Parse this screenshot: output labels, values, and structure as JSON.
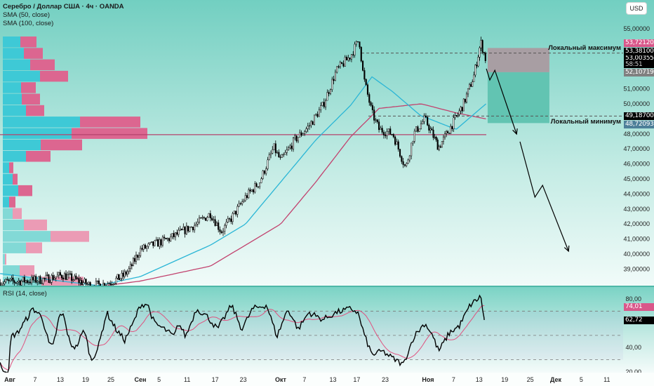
{
  "header": {
    "title": "Серебро / Доллар США · 4ч · OANDA",
    "sma50_label": "SMA (50, close)",
    "sma100_label": "SMA (100, close)",
    "currency_button": "USD"
  },
  "annotations": {
    "local_max": "Локальный максимум",
    "local_min": "Локальный минимум"
  },
  "price_badges": {
    "high": "53,72120",
    "local_max_level": "53,38100",
    "last": "53,00355",
    "countdown": "58:51",
    "low_mark": "52,10719",
    "local_min_level": "49,18700",
    "target": "48,72093"
  },
  "rsi": {
    "label": "RSI (14, close)",
    "ma_badge": "74,01",
    "value_badge": "62,72"
  },
  "colors": {
    "sma50": "#2bb6d6",
    "sma100": "#c2426e",
    "rsi_ma": "#e0527f",
    "badge_pink": "#d9578a",
    "badge_grey": "#808080",
    "badge_blue": "#4d7f99",
    "vp_up": "#3ec9d6",
    "vp_down": "#dc6690",
    "vp_up_light": "#82d9d6",
    "vp_down_light": "#eb9bb5"
  },
  "chart_data": [
    {
      "type": "candlestick",
      "title": "Серебро / Доллар США · 4ч · OANDA",
      "ylim": [
        37.6,
        55.8
      ],
      "y_ticks": [
        "55,00000",
        "51,00000",
        "50,00000",
        "48,00000",
        "47,00000",
        "46,00000",
        "45,00000",
        "44,00000",
        "43,00000",
        "42,00000",
        "41,00000",
        "40,00000",
        "39,00000"
      ],
      "y_tick_values": [
        55,
        51,
        50,
        48,
        47,
        46,
        45,
        44,
        43,
        42,
        41,
        40,
        39
      ],
      "x_ticks": [
        "Авг",
        "7",
        "13",
        "19",
        "25",
        "Сен",
        "5",
        "11",
        "17",
        "23",
        "Окт",
        "7",
        "13",
        "17",
        "23",
        "Ноя",
        "7",
        "13",
        "19",
        "25",
        "Дек",
        "5",
        "11"
      ],
      "x_tick_days": [
        0,
        6,
        12,
        18,
        24,
        31,
        35,
        41,
        47,
        53,
        61,
        66,
        72,
        77,
        83,
        92,
        98,
        104,
        110,
        116,
        122,
        128,
        134
      ],
      "price_path_day_price": [
        [
          -2.3,
          38.1
        ],
        [
          7.7,
          38.3
        ],
        [
          12.7,
          38.6
        ],
        [
          19.3,
          37.9
        ],
        [
          22.7,
          38.0
        ],
        [
          26.8,
          38.5
        ],
        [
          28.5,
          39.0
        ],
        [
          31,
          40.3
        ],
        [
          37,
          41.0
        ],
        [
          43,
          42.0
        ],
        [
          46,
          42.7
        ],
        [
          48.3,
          41.5
        ],
        [
          50.5,
          42.4
        ],
        [
          53.5,
          43.8
        ],
        [
          56.5,
          44.8
        ],
        [
          59.5,
          47.1
        ],
        [
          61,
          46.2
        ],
        [
          64,
          47.6
        ],
        [
          66.9,
          48.5
        ],
        [
          69.9,
          49.9
        ],
        [
          72.7,
          52.2
        ],
        [
          75.7,
          53.2
        ],
        [
          77.5,
          54.3
        ],
        [
          78.4,
          51.8
        ],
        [
          80.2,
          49.4
        ],
        [
          81.7,
          48.3
        ],
        [
          84.6,
          48.0
        ],
        [
          87.3,
          45.7
        ],
        [
          89,
          48.0
        ],
        [
          91.3,
          49.0
        ],
        [
          94.5,
          47.1
        ],
        [
          97,
          48.3
        ],
        [
          100.2,
          49.9
        ],
        [
          102.7,
          51.8
        ],
        [
          104.4,
          54.1
        ],
        [
          105.5,
          53.0
        ]
      ],
      "sma50": [
        [
          -2.3,
          38.7
        ],
        [
          21,
          37.9
        ],
        [
          31,
          38.5
        ],
        [
          46,
          40.6
        ],
        [
          53.5,
          42.0
        ],
        [
          61,
          44.8
        ],
        [
          68.4,
          47.6
        ],
        [
          75.7,
          49.9
        ],
        [
          80.2,
          51.8
        ],
        [
          84.6,
          50.8
        ],
        [
          90.5,
          49.2
        ],
        [
          98.6,
          48.3
        ],
        [
          105.6,
          50.0
        ]
      ],
      "sma100": [
        [
          22.7,
          37.9
        ],
        [
          31,
          38.2
        ],
        [
          46,
          39.2
        ],
        [
          61,
          42.0
        ],
        [
          68.4,
          44.8
        ],
        [
          75.7,
          47.8
        ],
        [
          81.7,
          49.7
        ],
        [
          90.5,
          50.0
        ],
        [
          98.6,
          49.4
        ],
        [
          105.6,
          49.0
        ]
      ],
      "volume_profile": {
        "row_price_top": 54.5,
        "row_price_step": 0.762,
        "rows": [
          {
            "up": 25,
            "down": 23,
            "value_area": true
          },
          {
            "up": 30,
            "down": 27,
            "value_area": true
          },
          {
            "up": 39,
            "down": 35,
            "value_area": true
          },
          {
            "up": 53,
            "down": 40,
            "value_area": true
          },
          {
            "up": 26,
            "down": 21,
            "value_area": true
          },
          {
            "up": 27,
            "down": 26,
            "value_area": true
          },
          {
            "up": 33,
            "down": 26,
            "value_area": true
          },
          {
            "up": 110,
            "down": 86,
            "value_area": true
          },
          {
            "up": 98,
            "down": 108,
            "value_area": true
          },
          {
            "up": 54,
            "down": 59,
            "value_area": true
          },
          {
            "up": 33,
            "down": 35,
            "value_area": true
          },
          {
            "up": 9,
            "down": 6,
            "value_area": true
          },
          {
            "up": 14,
            "down": 7,
            "value_area": true
          },
          {
            "up": 22,
            "down": 20,
            "value_area": true
          },
          {
            "up": 9,
            "down": 9,
            "value_area": true
          },
          {
            "up": 14,
            "down": 13,
            "value_area": false
          },
          {
            "up": 30,
            "down": 33,
            "value_area": false
          },
          {
            "up": 68,
            "down": 55,
            "value_area": false
          },
          {
            "up": 33,
            "down": 23,
            "value_area": false
          },
          {
            "up": 3,
            "down": 2,
            "value_area": false
          },
          {
            "up": 24,
            "down": 21,
            "value_area": false
          },
          {
            "up": 55,
            "down": 60,
            "value_area": false
          }
        ],
        "poc_price": 47.95
      },
      "levels": {
        "local_max": 53.381,
        "local_min": 49.187
      },
      "position_box": {
        "day_start": 106,
        "day_end": 120.5,
        "stop": 53.7212,
        "entry": 52.10719,
        "target": 48.72093
      },
      "projection_arrows": [
        [
          [
            105.7,
            52.34
          ],
          [
            106.5,
            51.59
          ],
          [
            107.7,
            52.24
          ],
          [
            112.8,
            47.99
          ]
        ],
        [
          [
            113.6,
            47.48
          ],
          [
            117.1,
            43.79
          ],
          [
            118.9,
            44.58
          ],
          [
            125,
            40.19
          ]
        ]
      ]
    },
    {
      "type": "line",
      "title": "RSI (14, close)",
      "ylim": [
        18,
        87
      ],
      "y_ticks": [
        "80,00",
        "40,00",
        "20,00"
      ],
      "y_tick_values": [
        80,
        40,
        20
      ],
      "bands": [
        70,
        50,
        30
      ],
      "rsi_day_value": [
        [
          -2.3,
          26
        ],
        [
          -1.5,
          22
        ],
        [
          -0.2,
          20
        ],
        [
          0.2,
          49
        ],
        [
          1.8,
          52
        ],
        [
          3.5,
          61
        ],
        [
          5.5,
          72
        ],
        [
          7.7,
          65
        ],
        [
          9.3,
          43
        ],
        [
          10.2,
          40
        ],
        [
          11.8,
          66
        ],
        [
          12.7,
          67
        ],
        [
          14.3,
          43
        ],
        [
          15.7,
          40
        ],
        [
          17.7,
          55
        ],
        [
          19.3,
          29
        ],
        [
          21,
          40
        ],
        [
          23,
          69
        ],
        [
          25.2,
          55
        ],
        [
          27.3,
          46
        ],
        [
          29.3,
          60
        ],
        [
          31,
          75
        ],
        [
          32.5,
          76
        ],
        [
          34,
          60
        ],
        [
          36.2,
          55
        ],
        [
          38.2,
          49
        ],
        [
          39.2,
          60
        ],
        [
          40.7,
          49
        ],
        [
          43,
          72
        ],
        [
          45.2,
          66
        ],
        [
          47.5,
          55
        ],
        [
          50.5,
          75
        ],
        [
          52.7,
          55
        ],
        [
          55,
          72
        ],
        [
          58,
          75
        ],
        [
          60.2,
          49
        ],
        [
          62.5,
          72
        ],
        [
          64.7,
          55
        ],
        [
          66.9,
          69
        ],
        [
          69.9,
          63
        ],
        [
          72.8,
          69
        ],
        [
          75.7,
          72
        ],
        [
          77.2,
          69
        ],
        [
          78.7,
          49
        ],
        [
          80.2,
          34
        ],
        [
          82.4,
          37
        ],
        [
          84.6,
          31
        ],
        [
          86.8,
          26
        ],
        [
          89,
          49
        ],
        [
          91.3,
          60
        ],
        [
          92.8,
          52
        ],
        [
          94.5,
          37
        ],
        [
          97,
          52
        ],
        [
          99.4,
          58
        ],
        [
          101.9,
          75
        ],
        [
          104.4,
          82
        ],
        [
          105.2,
          62.72
        ]
      ],
      "rsi_ma_last": 74.01
    }
  ]
}
